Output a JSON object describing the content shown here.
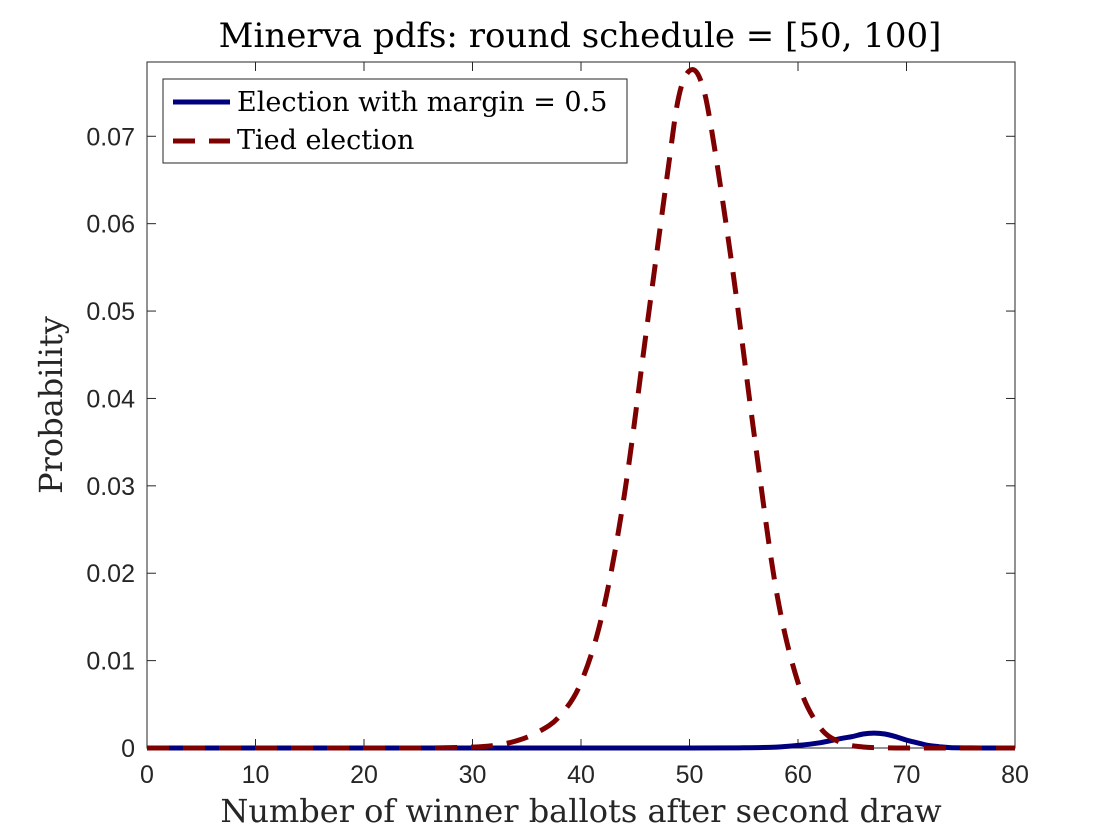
{
  "chart_data": {
    "type": "line",
    "title": "Minerva pdfs: round schedule = [50, 100]",
    "xlabel": "Number of winner ballots after second draw",
    "ylabel": "Probability",
    "xlim": [
      0,
      80
    ],
    "ylim": [
      0,
      0.0785
    ],
    "xticks": [
      0,
      10,
      20,
      30,
      40,
      50,
      60,
      70,
      80
    ],
    "yticks": [
      0,
      0.01,
      0.02,
      0.03,
      0.04,
      0.05,
      0.06,
      0.07
    ],
    "xtick_labels": [
      "0",
      "10",
      "20",
      "30",
      "40",
      "50",
      "60",
      "70",
      "80"
    ],
    "ytick_labels": [
      "0",
      "0.01",
      "0.02",
      "0.03",
      "0.04",
      "0.05",
      "0.06",
      "0.07"
    ],
    "grid": false,
    "legend_position": "top-left",
    "series": [
      {
        "name": "Election with margin = 0.5",
        "color": "#00007f",
        "style": "solid",
        "x": [
          0,
          10,
          20,
          30,
          40,
          50,
          55,
          58,
          60,
          62,
          64,
          65,
          66,
          67,
          68,
          69,
          70,
          71,
          72,
          73,
          74,
          76,
          78,
          80
        ],
        "y": [
          0,
          0,
          0,
          0,
          0,
          0,
          2e-05,
          0.0001,
          0.0003,
          0.0006,
          0.0011,
          0.0013,
          0.0016,
          0.0017,
          0.0016,
          0.0013,
          0.0009,
          0.0006,
          0.0003,
          0.00015,
          5e-05,
          1e-05,
          0,
          0
        ]
      },
      {
        "name": "Tied election",
        "color": "#7f0000",
        "style": "dashed",
        "x": [
          0,
          10,
          20,
          25,
          30,
          32,
          34,
          36,
          38,
          40,
          42,
          44,
          46,
          48,
          49,
          50,
          51,
          52,
          54,
          56,
          58,
          60,
          62,
          64,
          66,
          68,
          70,
          72,
          75,
          80
        ],
        "y": [
          0,
          0,
          0,
          0,
          0.0001,
          0.0003,
          0.0008,
          0.0018,
          0.0036,
          0.0075,
          0.0155,
          0.029,
          0.0475,
          0.066,
          0.0745,
          0.0775,
          0.0765,
          0.071,
          0.0545,
          0.0355,
          0.018,
          0.0075,
          0.0024,
          0.0006,
          0.00012,
          2e-05,
          0,
          0,
          0,
          0
        ]
      }
    ]
  }
}
